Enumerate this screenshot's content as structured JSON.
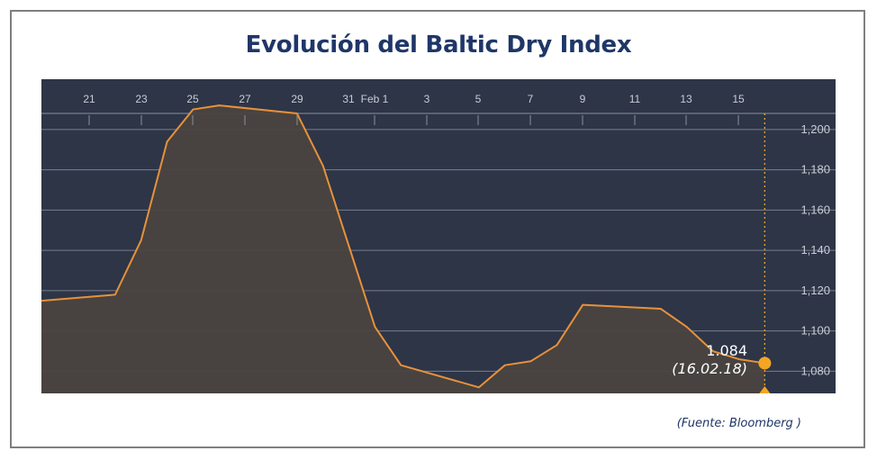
{
  "title": "Evolución del Baltic Dry Index",
  "source": "(Fuente: Bloomberg )",
  "colors": {
    "background": "#2d3547",
    "line": "#e8913a",
    "area": "#4a4440",
    "grid": "#8a8f9c",
    "tick_text": "#c9ccd4",
    "marker": "#f4a623",
    "title": "#1f3668"
  },
  "chart_data": {
    "type": "area",
    "title": "Evolución del Baltic Dry Index",
    "xlabel": "",
    "ylabel": "",
    "x_tick_labels": [
      "21",
      "23",
      "25",
      "27",
      "29",
      "31",
      "Feb 1",
      "3",
      "5",
      "7",
      "9",
      "11",
      "13",
      "15"
    ],
    "y_tick_labels": [
      "1,200",
      "1,180",
      "1,160",
      "1,140",
      "1,120",
      "1,100",
      "1,080"
    ],
    "y_ticks": [
      1200,
      1180,
      1160,
      1140,
      1120,
      1100,
      1080
    ],
    "ylim": [
      1069,
      1225
    ],
    "grid": true,
    "y_axis_position": "right",
    "x_axis_position": "top",
    "series": [
      {
        "dates": [
          "Jan 19",
          "Jan 22",
          "Jan 23",
          "Jan 24",
          "Jan 25",
          "Jan 26",
          "Jan 29",
          "Jan 30",
          "Jan 31",
          "Feb 1",
          "Feb 2",
          "Feb 5",
          "Feb 6",
          "Feb 7",
          "Feb 8",
          "Feb 9",
          "Feb 12",
          "Feb 13",
          "Feb 14",
          "Feb 15",
          "Feb 16"
        ],
        "values": [
          1115,
          1118,
          1145,
          1194,
          1210,
          1212,
          1208,
          1182,
          1142,
          1102,
          1083,
          1072,
          1083,
          1085,
          1093,
          1113,
          1111,
          1102,
          1090,
          1086,
          1084
        ]
      }
    ],
    "annotation": {
      "value_label": "1.084",
      "date_label": "(16.02.18)"
    }
  }
}
